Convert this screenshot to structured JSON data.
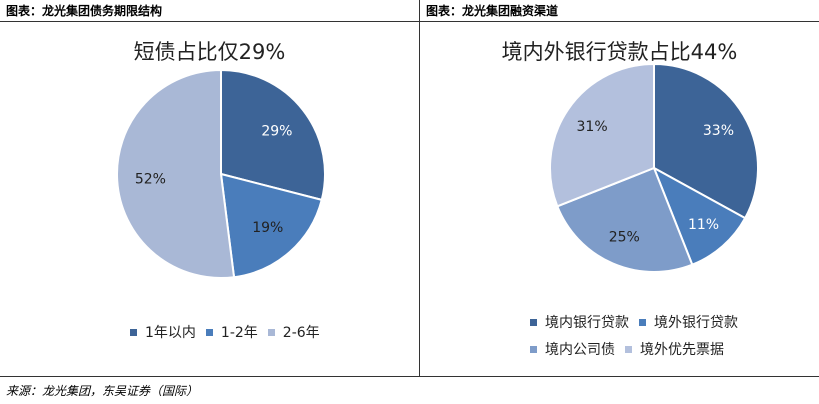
{
  "left_panel": {
    "header": "图表：龙光集团债务期限结构",
    "chart_title": "短债占比仅29%"
  },
  "right_panel": {
    "header": "图表：龙光集团融资渠道",
    "chart_title": "境内外银行贷款占比44%"
  },
  "source": "来源：龙光集团，东吴证券（国际）",
  "chart_data": [
    {
      "type": "pie",
      "title": "短债占比仅29%",
      "labels": [
        "1年以内",
        "1-2年",
        "2-6年"
      ],
      "values": [
        29,
        19,
        52
      ],
      "value_labels": [
        "29%",
        "19%",
        "52%"
      ],
      "colors": [
        "#3d6497",
        "#4a7dbb",
        "#a9b8d6"
      ],
      "legend": "bottom"
    },
    {
      "type": "pie",
      "title": "境内外银行贷款占比44%",
      "labels": [
        "境内银行贷款",
        "境外银行贷款",
        "境内公司债",
        "境外优先票据"
      ],
      "values": [
        33,
        11,
        25,
        31
      ],
      "value_labels": [
        "33%",
        "11%",
        "25%",
        "31%"
      ],
      "colors": [
        "#3d6497",
        "#4a7dbb",
        "#7e9cc9",
        "#b3c0dd"
      ],
      "legend": "bottom"
    }
  ]
}
